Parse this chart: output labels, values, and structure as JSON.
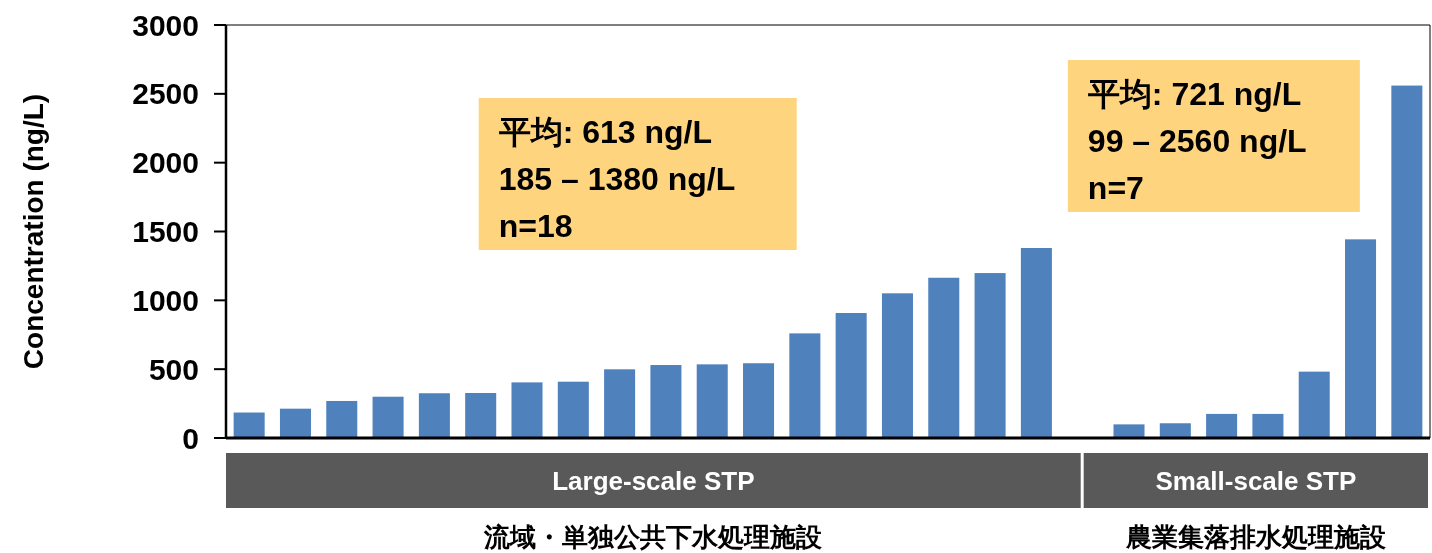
{
  "chart_data": {
    "type": "bar",
    "ylabel": "Concentration (ng/L)",
    "categories": [
      null,
      null,
      null,
      null,
      null,
      null,
      null,
      null,
      null,
      null,
      null,
      null,
      null,
      null,
      null,
      null,
      null,
      null,
      null,
      null,
      null,
      null,
      null,
      null,
      null,
      null
    ],
    "values": [
      185,
      213,
      269,
      300,
      325,
      327,
      404,
      409,
      499,
      530,
      535,
      543,
      760,
      908,
      1051,
      1164,
      1198,
      1380,
      null,
      99,
      107,
      175,
      175,
      482,
      1443,
      2560
    ],
    "color": "#4f81bd",
    "ylim": [
      0,
      3000
    ],
    "yticks": [
      0,
      500,
      1000,
      1500,
      2000,
      2500,
      3000
    ],
    "annotations": [
      "平均: 613 ng/L\n185 – 1380 ng/L\nn=18",
      "平均: 721 ng/L\n99 – 2560 ng/L\nn=7",
      "Large-scale STP",
      "流域・単独公共下水処理施設",
      "Small-scale STP",
      "農業集落排水処理施設"
    ]
  }
}
